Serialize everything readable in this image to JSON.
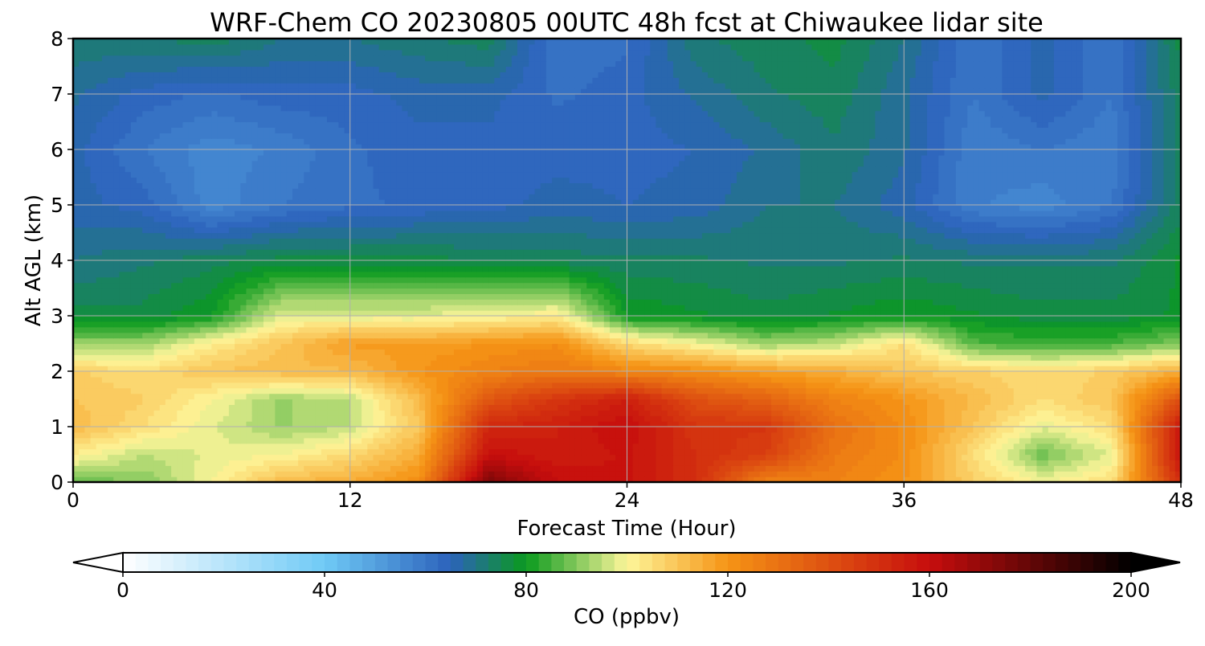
{
  "chart_data": {
    "type": "heatmap",
    "title": "WRF-Chem CO  20230805 00UTC 48h fcst at Chiwaukee lidar site",
    "xlabel": "Forecast Time (Hour)",
    "ylabel": "Alt AGL (km)",
    "xlim": [
      0,
      48
    ],
    "ylim": [
      0,
      8
    ],
    "xticks": [
      0,
      12,
      24,
      36,
      48
    ],
    "yticks": [
      0,
      1,
      2,
      3,
      4,
      5,
      6,
      7,
      8
    ],
    "grid": true,
    "x": [
      0,
      3,
      6,
      9,
      12,
      15,
      18,
      21,
      24,
      27,
      30,
      33,
      36,
      39,
      42,
      45,
      48
    ],
    "y": [
      0,
      0.5,
      1,
      1.5,
      2,
      2.5,
      3,
      4,
      5,
      6,
      7,
      8
    ],
    "z": [
      [
        88,
        90,
        100,
        112,
        115,
        122,
        175,
        160,
        158,
        150,
        125,
        125,
        120,
        108,
        100,
        105,
        150
      ],
      [
        102,
        95,
        98,
        100,
        106,
        115,
        160,
        155,
        158,
        150,
        145,
        128,
        122,
        105,
        88,
        98,
        160
      ],
      [
        112,
        105,
        98,
        92,
        95,
        110,
        152,
        155,
        160,
        148,
        148,
        130,
        122,
        110,
        98,
        105,
        158
      ],
      [
        110,
        108,
        100,
        92,
        95,
        112,
        138,
        148,
        155,
        140,
        135,
        125,
        120,
        112,
        105,
        110,
        140
      ],
      [
        108,
        105,
        110,
        112,
        112,
        120,
        125,
        128,
        124,
        122,
        118,
        115,
        110,
        108,
        105,
        108,
        115
      ],
      [
        92,
        92,
        102,
        110,
        118,
        118,
        120,
        122,
        106,
        100,
        92,
        95,
        105,
        86,
        84,
        85,
        90
      ],
      [
        76,
        76,
        80,
        98,
        98,
        98,
        100,
        102,
        80,
        78,
        76,
        78,
        80,
        78,
        76,
        76,
        78
      ],
      [
        70,
        72,
        74,
        76,
        76,
        76,
        75,
        74,
        73,
        73,
        72,
        72,
        73,
        72,
        72,
        72,
        78
      ],
      [
        66,
        64,
        56,
        60,
        62,
        63,
        64,
        66,
        65,
        66,
        70,
        70,
        66,
        58,
        56,
        60,
        74
      ],
      [
        66,
        60,
        56,
        58,
        62,
        64,
        64,
        64,
        64,
        65,
        68,
        72,
        68,
        58,
        60,
        58,
        74
      ],
      [
        68,
        64,
        62,
        64,
        64,
        66,
        66,
        62,
        64,
        68,
        72,
        74,
        68,
        60,
        66,
        60,
        74
      ],
      [
        72,
        72,
        74,
        70,
        70,
        72,
        74,
        60,
        62,
        72,
        74,
        76,
        70,
        60,
        66,
        60,
        76
      ]
    ],
    "colorbar": {
      "label": "CO  (ppbv)",
      "vmin": 0,
      "vmax": 200,
      "ticks": [
        "0",
        "40",
        "80",
        "120",
        "160",
        "200"
      ],
      "extend": "both",
      "palette": [
        "#ffffff",
        "#6fcaf6",
        "#2c62bb",
        "#0a9a1e",
        "#fdf69a",
        "#f59415",
        "#c70d0d",
        "#000000"
      ]
    }
  }
}
